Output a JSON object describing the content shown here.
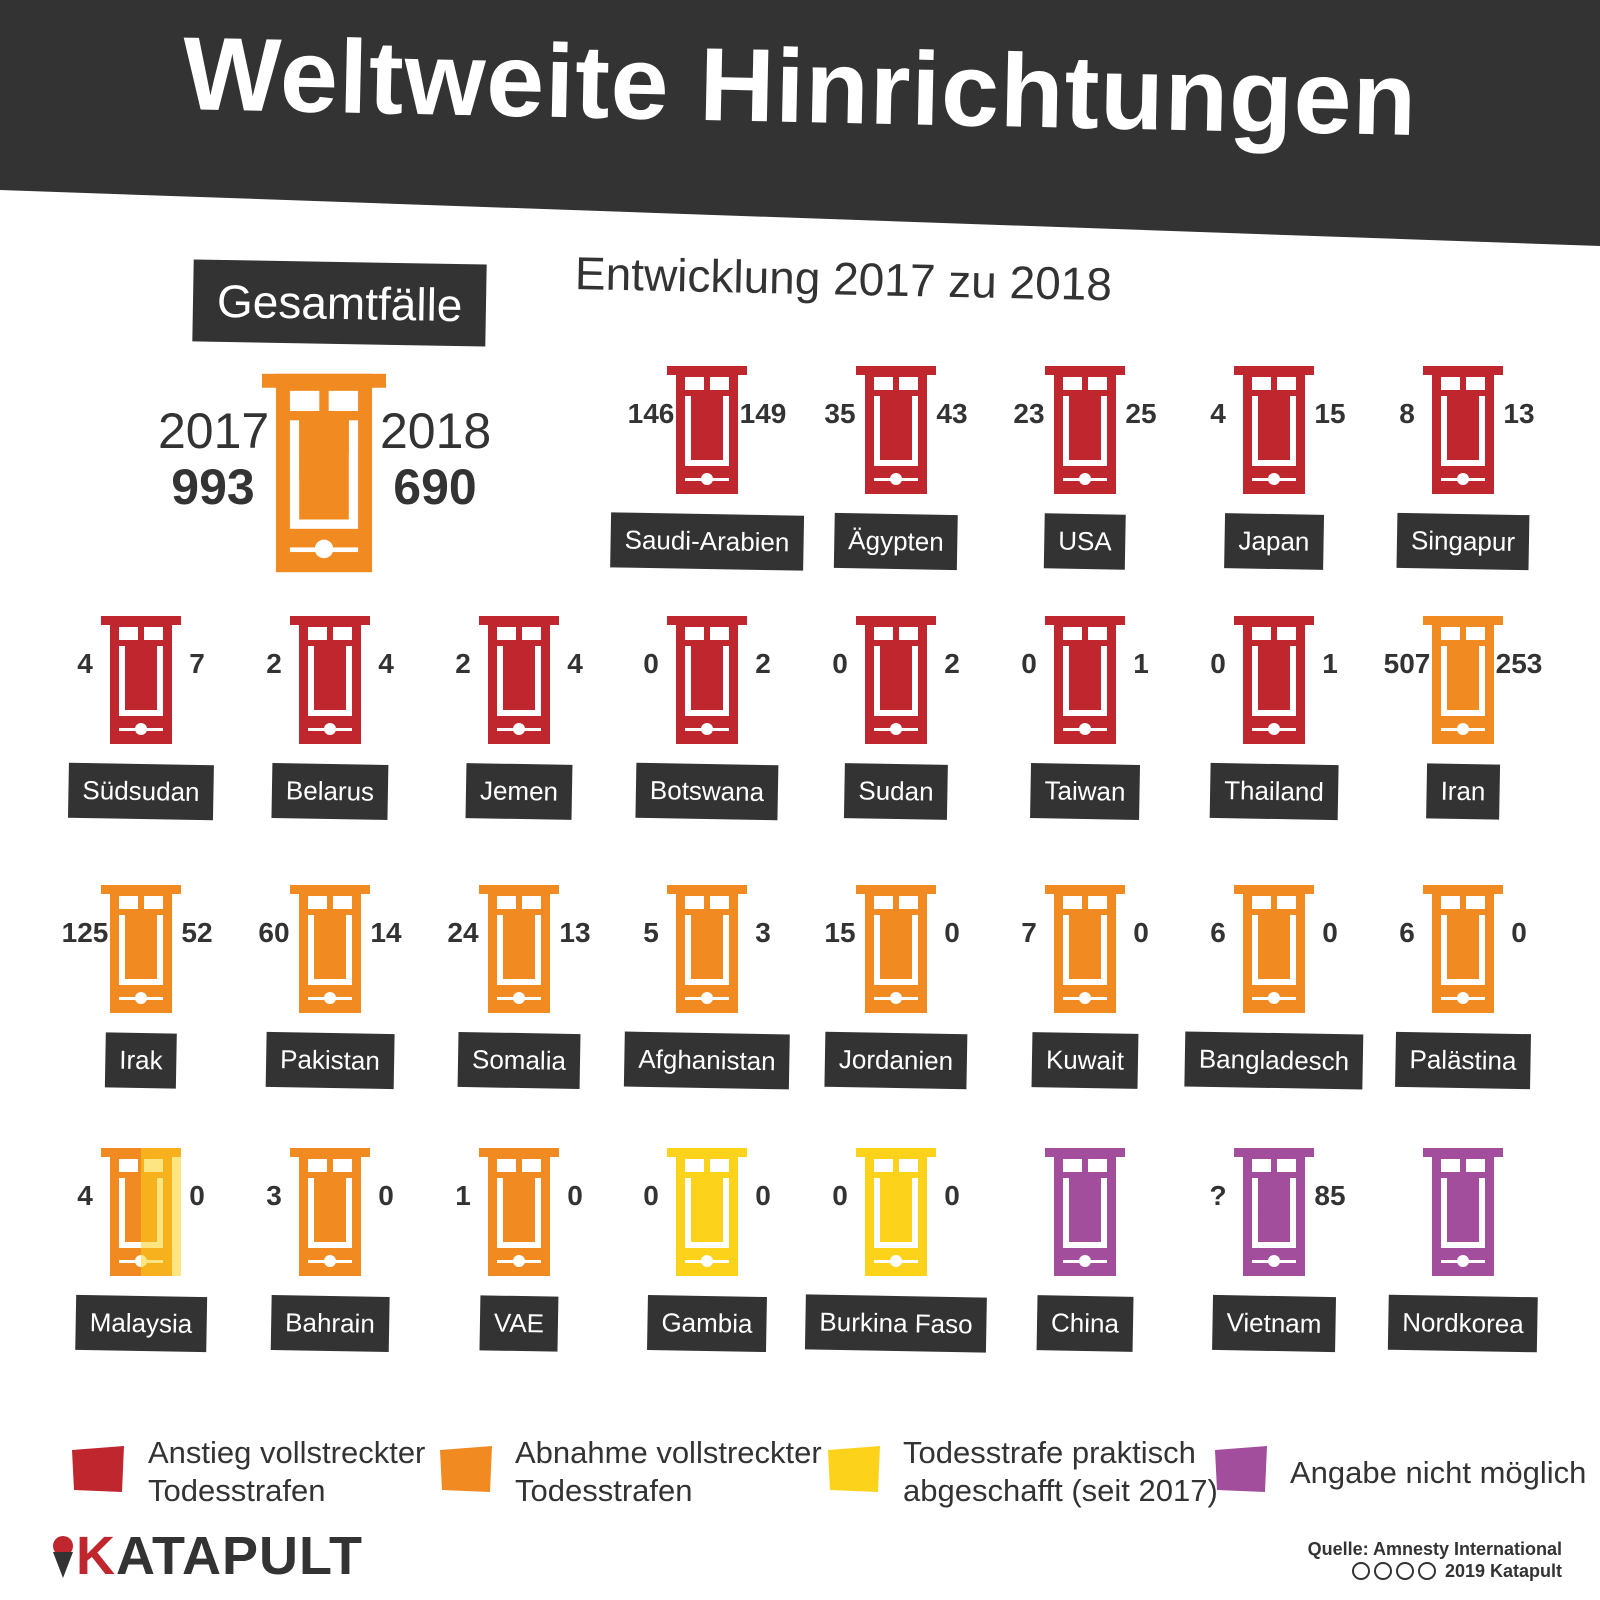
{
  "title": "Weltweite Hinrichtungen",
  "subtitle": "Entwicklung 2017 zu 2018",
  "total": {
    "label": "Gesamtfälle",
    "year_2017": "2017",
    "year_2018": "2018",
    "count_2017": "993",
    "count_2018": "690",
    "color_key": "orange"
  },
  "colors": {
    "red": "#c0262d",
    "orange": "#f18a21",
    "yellow": "#fcd21b",
    "purple": "#a34d9d",
    "dark": "#333333"
  },
  "countries": [
    {
      "name": "Saudi-Arabien",
      "v2017": "146",
      "v2018": "149",
      "color": "red"
    },
    {
      "name": "Ägypten",
      "v2017": "35",
      "v2018": "43",
      "color": "red"
    },
    {
      "name": "USA",
      "v2017": "23",
      "v2018": "25",
      "color": "red"
    },
    {
      "name": "Japan",
      "v2017": "4",
      "v2018": "15",
      "color": "red"
    },
    {
      "name": "Singapur",
      "v2017": "8",
      "v2018": "13",
      "color": "red"
    },
    {
      "name": "Südsudan",
      "v2017": "4",
      "v2018": "7",
      "color": "red"
    },
    {
      "name": "Belarus",
      "v2017": "2",
      "v2018": "4",
      "color": "red"
    },
    {
      "name": "Jemen",
      "v2017": "2",
      "v2018": "4",
      "color": "red"
    },
    {
      "name": "Botswana",
      "v2017": "0",
      "v2018": "2",
      "color": "red"
    },
    {
      "name": "Sudan",
      "v2017": "0",
      "v2018": "2",
      "color": "red"
    },
    {
      "name": "Taiwan",
      "v2017": "0",
      "v2018": "1",
      "color": "red"
    },
    {
      "name": "Thailand",
      "v2017": "0",
      "v2018": "1",
      "color": "red"
    },
    {
      "name": "Iran",
      "v2017": "507",
      "v2018": "253",
      "color": "orange"
    },
    {
      "name": "Irak",
      "v2017": "125",
      "v2018": "52",
      "color": "orange"
    },
    {
      "name": "Pakistan",
      "v2017": "60",
      "v2018": "14",
      "color": "orange"
    },
    {
      "name": "Somalia",
      "v2017": "24",
      "v2018": "13",
      "color": "orange"
    },
    {
      "name": "Afghanistan",
      "v2017": "5",
      "v2018": "3",
      "color": "orange"
    },
    {
      "name": "Jordanien",
      "v2017": "15",
      "v2018": "0",
      "color": "orange"
    },
    {
      "name": "Kuwait",
      "v2017": "7",
      "v2018": "0",
      "color": "orange"
    },
    {
      "name": "Bangladesch",
      "v2017": "6",
      "v2018": "0",
      "color": "orange"
    },
    {
      "name": "Palästina",
      "v2017": "6",
      "v2018": "0",
      "color": "orange"
    },
    {
      "name": "Malaysia",
      "v2017": "4",
      "v2018": "0",
      "color": "orange",
      "split": "yellow"
    },
    {
      "name": "Bahrain",
      "v2017": "3",
      "v2018": "0",
      "color": "orange"
    },
    {
      "name": "VAE",
      "v2017": "1",
      "v2018": "0",
      "color": "orange"
    },
    {
      "name": "Gambia",
      "v2017": "0",
      "v2018": "0",
      "color": "yellow"
    },
    {
      "name": "Burkina Faso",
      "v2017": "0",
      "v2018": "0",
      "color": "yellow"
    },
    {
      "name": "China",
      "v2017": "",
      "v2018": "",
      "color": "purple"
    },
    {
      "name": "Vietnam",
      "v2017": "?",
      "v2018": "85",
      "color": "purple"
    },
    {
      "name": "Nordkorea",
      "v2017": "",
      "v2018": "",
      "color": "purple"
    }
  ],
  "legend": [
    {
      "line1": "Anstieg vollstreckter",
      "line2": "Todesstrafen",
      "color": "red"
    },
    {
      "line1": "Abnahme vollstreckter",
      "line2": "Todesstrafen",
      "color": "orange"
    },
    {
      "line1": "Todesstrafe praktisch",
      "line2": "abgeschafft (seit 2017)",
      "color": "yellow"
    },
    {
      "line1": "Angabe nicht möglich",
      "line2": "",
      "color": "purple"
    }
  ],
  "brand": {
    "first_letter": "K",
    "rest": "ATAPULT"
  },
  "source": {
    "line1": "Quelle: Amnesty International",
    "line2": "2019 Katapult"
  }
}
